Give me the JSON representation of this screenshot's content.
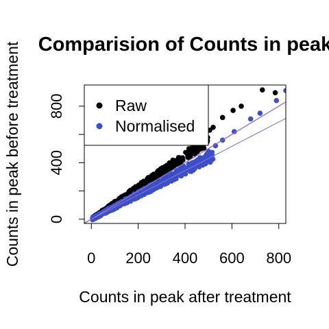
{
  "chart_data": {
    "type": "scatter",
    "title": "Comparision of Counts in peak",
    "xlabel": "Counts in peak after treatment",
    "ylabel": "Counts in peak before treatment",
    "xlim": [
      -30,
      830
    ],
    "ylim": [
      -30,
      950
    ],
    "x_ticks": [
      0,
      200,
      400,
      600,
      800
    ],
    "y_ticks": [
      0,
      200,
      400,
      600,
      800
    ],
    "y_tick_labels": [
      "0",
      "",
      "400",
      "",
      "800"
    ],
    "grid": false,
    "legend": {
      "placement": "top-left",
      "entries": [
        {
          "label": "Raw",
          "color": "#000000"
        },
        {
          "label": "Normalised",
          "color": "#3A4FC8"
        }
      ]
    },
    "series": [
      {
        "name": "Raw",
        "color": "#000000",
        "trend_slope": 1.12,
        "x_range": [
          5,
          500
        ],
        "outliers": [
          [
            730,
            915
          ],
          [
            785,
            895
          ],
          [
            640,
            800
          ],
          [
            605,
            770
          ],
          [
            560,
            720
          ],
          [
            520,
            650
          ],
          [
            505,
            630
          ],
          [
            470,
            590
          ],
          [
            450,
            560
          ]
        ]
      },
      {
        "name": "Normalised",
        "color": "#3A4FC8",
        "trend_slope": 0.87,
        "x_range": [
          5,
          520
        ],
        "outliers": [
          [
            830,
            910
          ],
          [
            790,
            840
          ],
          [
            720,
            750
          ],
          [
            680,
            710
          ],
          [
            610,
            620
          ],
          [
            560,
            560
          ],
          [
            530,
            520
          ],
          [
            500,
            480
          ]
        ]
      }
    ],
    "reference_lines": [
      {
        "type": "identity",
        "slope": 1,
        "intercept": 0,
        "color": "#E0504A"
      },
      {
        "type": "fit",
        "slope": 1,
        "intercept": 0,
        "color": "#8A6FD8"
      }
    ]
  }
}
